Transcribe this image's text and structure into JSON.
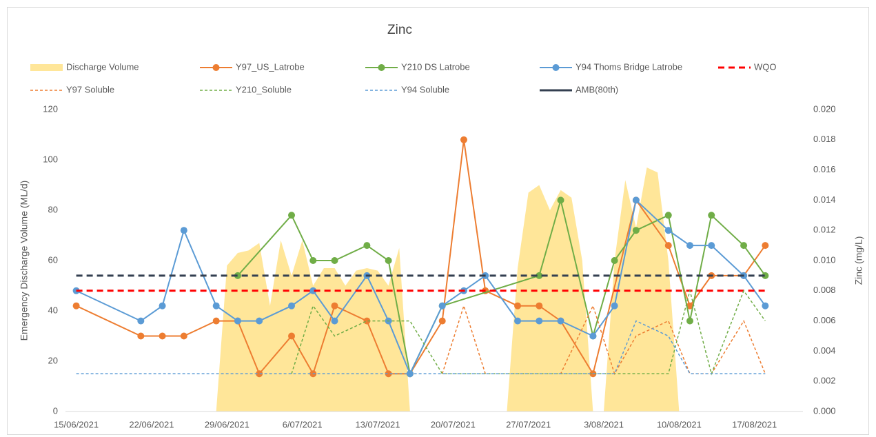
{
  "chart_data": {
    "type": "line",
    "title": "Zinc",
    "ylabel": "Emergency Discharge Volume (ML/d)",
    "y2label": "Zinc (mg/L)",
    "xlim": [
      -1,
      67.5
    ],
    "xticks": [
      {
        "value": 0,
        "label": "15/06/2021"
      },
      {
        "value": 7,
        "label": "22/06/2021"
      },
      {
        "value": 14,
        "label": "29/06/2021"
      },
      {
        "value": 21,
        "label": "6/07/2021"
      },
      {
        "value": 28,
        "label": "13/07/2021"
      },
      {
        "value": 35,
        "label": "20/07/2021"
      },
      {
        "value": 42,
        "label": "27/07/2021"
      },
      {
        "value": 49,
        "label": "3/08/2021"
      },
      {
        "value": 56,
        "label": "10/08/2021"
      },
      {
        "value": 63,
        "label": "17/08/2021"
      }
    ],
    "ylim": [
      0,
      120
    ],
    "yticks": [
      0,
      20,
      40,
      60,
      80,
      100,
      120
    ],
    "y2lim": [
      0,
      0.02
    ],
    "y2ticks": [
      {
        "value": 0,
        "label": "0.000"
      },
      {
        "value": 0.002,
        "label": "0.002"
      },
      {
        "value": 0.004,
        "label": "0.004"
      },
      {
        "value": 0.006,
        "label": "0.006"
      },
      {
        "value": 0.008,
        "label": "0.008"
      },
      {
        "value": 0.01,
        "label": "0.010"
      },
      {
        "value": 0.012,
        "label": "0.012"
      },
      {
        "value": 0.014,
        "label": "0.014"
      },
      {
        "value": 0.016,
        "label": "0.016"
      },
      {
        "value": 0.018,
        "label": "0.018"
      },
      {
        "value": 0.02,
        "label": "0.020"
      }
    ],
    "series": [
      {
        "name": "Discharge Volume",
        "color": "#FFE699",
        "style": "area",
        "x": [
          13,
          14,
          15,
          16,
          17,
          18,
          19,
          20,
          21,
          22,
          23,
          24,
          25,
          26,
          27,
          28,
          29,
          30,
          31,
          40,
          41,
          42,
          43,
          44,
          45,
          46,
          47,
          48,
          49,
          50,
          51,
          52,
          53,
          54,
          55,
          56
        ],
        "values": [
          0,
          58,
          63,
          64,
          67,
          42,
          68,
          54,
          68,
          50,
          57,
          57,
          50,
          56,
          57,
          56,
          50,
          65,
          0,
          0,
          57,
          87,
          90,
          80,
          88,
          85,
          60,
          0,
          0,
          60,
          92,
          73,
          97,
          95,
          60,
          0
        ]
      },
      {
        "name": "Y97_US_Latrobe",
        "color": "#ED7D31",
        "style": "line",
        "axis": "y2",
        "x": [
          0,
          6,
          8,
          10,
          13,
          15,
          17,
          20,
          22,
          24,
          27,
          29,
          31,
          34,
          36,
          38,
          41,
          43,
          45,
          48,
          52,
          55,
          57,
          59,
          62,
          64
        ],
        "values": [
          0.007,
          0.005,
          0.005,
          0.005,
          0.006,
          0.006,
          0.0025,
          0.005,
          0.0025,
          0.007,
          0.006,
          0.0025,
          0.0025,
          0.006,
          0.018,
          0.008,
          0.007,
          0.007,
          0.006,
          0.0025,
          0.014,
          0.011,
          0.007,
          0.009,
          0.009,
          0.011
        ]
      },
      {
        "name": "Y210 DS Latrobe",
        "color": "#70AD47",
        "style": "line",
        "axis": "y2",
        "x": [
          15,
          20,
          22,
          24,
          27,
          29,
          31,
          34,
          43,
          45,
          48,
          50,
          52,
          55,
          57,
          59,
          62,
          64
        ],
        "values": [
          0.009,
          0.013,
          0.01,
          0.01,
          0.011,
          0.01,
          0.0025,
          0.007,
          0.009,
          0.014,
          0.005,
          0.01,
          0.012,
          0.013,
          0.006,
          0.013,
          0.011,
          0.009
        ]
      },
      {
        "name": "Y94 Thoms Bridge Latrobe",
        "color": "#5B9BD5",
        "style": "line",
        "axis": "y2",
        "x": [
          0,
          6,
          8,
          10,
          13,
          15,
          17,
          20,
          22,
          24,
          27,
          29,
          31,
          34,
          36,
          38,
          41,
          43,
          45,
          48,
          50,
          52,
          55,
          57,
          59,
          62,
          64
        ],
        "values": [
          0.008,
          0.006,
          0.007,
          0.012,
          0.007,
          0.006,
          0.006,
          0.007,
          0.008,
          0.006,
          0.009,
          0.006,
          0.0025,
          0.007,
          0.008,
          0.009,
          0.006,
          0.006,
          0.006,
          0.005,
          0.007,
          0.014,
          0.012,
          0.011,
          0.011,
          0.009,
          0.007
        ]
      },
      {
        "name": "WQO",
        "color": "#FF0000",
        "style": "reference",
        "axis": "y2",
        "x": [
          0,
          64
        ],
        "values": [
          0.008,
          0.008
        ]
      },
      {
        "name": "Y97 Soluble",
        "color": "#ED7D31",
        "style": "dashed",
        "axis": "y2",
        "x": [
          34,
          36,
          38,
          45,
          48,
          50,
          52,
          55,
          57,
          59,
          62,
          64
        ],
        "values": [
          0.0025,
          0.007,
          0.0025,
          0.0025,
          0.007,
          0.0025,
          0.005,
          0.006,
          0.0025,
          0.0025,
          0.006,
          0.0025
        ]
      },
      {
        "name": "Y210_Soluble",
        "color": "#70AD47",
        "style": "dashed",
        "axis": "y2",
        "x": [
          20,
          22,
          24,
          27,
          31,
          34,
          55,
          57,
          59,
          62,
          64
        ],
        "values": [
          0.0025,
          0.007,
          0.005,
          0.006,
          0.006,
          0.0025,
          0.0025,
          0.008,
          0.0025,
          0.008,
          0.006
        ]
      },
      {
        "name": "Y94 Soluble",
        "color": "#5B9BD5",
        "style": "dashed",
        "axis": "y2",
        "x": [
          0,
          50,
          52,
          55,
          57,
          64
        ],
        "values": [
          0.0025,
          0.0025,
          0.006,
          0.005,
          0.0025,
          0.0025
        ]
      },
      {
        "name": "AMB(80th)",
        "color": "#333F50",
        "style": "reference",
        "axis": "y2",
        "x": [
          0,
          64
        ],
        "values": [
          0.009,
          0.009
        ]
      }
    ]
  }
}
